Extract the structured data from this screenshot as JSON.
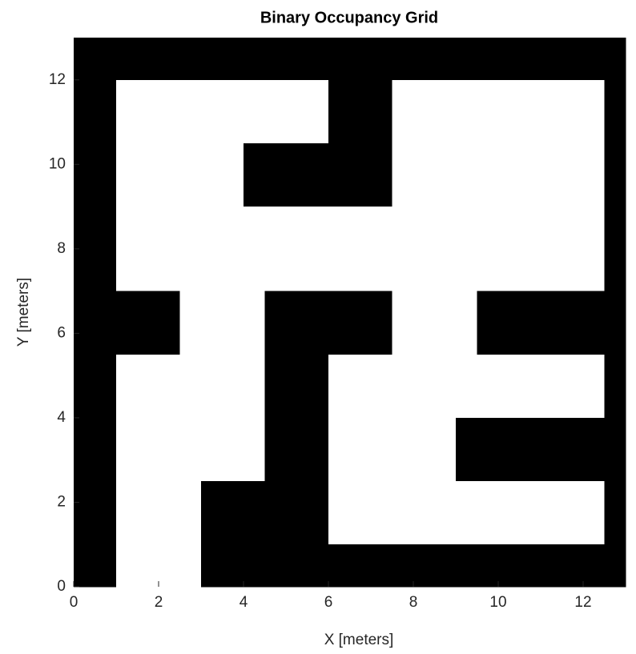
{
  "chart_data": {
    "type": "occupancy_grid",
    "title": "Binary Occupancy Grid",
    "x_label": "X [meters]",
    "y_label": "Y [meters]",
    "xlim": [
      0,
      13
    ],
    "ylim": [
      0,
      13
    ],
    "xticks": [
      0,
      2,
      4,
      6,
      8,
      10,
      12
    ],
    "yticks": [
      0,
      2,
      4,
      6,
      8,
      10,
      12
    ],
    "occupied_color": "#000000",
    "free_color": "#ffffff",
    "grid": [
      [
        1,
        1,
        1,
        1,
        1,
        1,
        1,
        1,
        1,
        1,
        1,
        1,
        1,
        1,
        1,
        1,
        1,
        1,
        1,
        1,
        1,
        1,
        1,
        1,
        1,
        1
      ],
      [
        1,
        1,
        1,
        1,
        1,
        1,
        1,
        1,
        1,
        1,
        1,
        1,
        1,
        1,
        1,
        1,
        1,
        1,
        1,
        1,
        1,
        1,
        1,
        1,
        1,
        1
      ],
      [
        1,
        1,
        0,
        0,
        0,
        0,
        0,
        0,
        0,
        0,
        0,
        0,
        1,
        1,
        1,
        0,
        0,
        0,
        0,
        0,
        0,
        0,
        0,
        0,
        0,
        1
      ],
      [
        1,
        1,
        0,
        0,
        0,
        0,
        0,
        0,
        0,
        0,
        0,
        0,
        1,
        1,
        1,
        0,
        0,
        0,
        0,
        0,
        0,
        0,
        0,
        0,
        0,
        1
      ],
      [
        1,
        1,
        0,
        0,
        0,
        0,
        0,
        0,
        0,
        0,
        0,
        0,
        1,
        1,
        1,
        0,
        0,
        0,
        0,
        0,
        0,
        0,
        0,
        0,
        0,
        1
      ],
      [
        1,
        1,
        0,
        0,
        0,
        0,
        0,
        0,
        1,
        1,
        1,
        1,
        1,
        1,
        1,
        0,
        0,
        0,
        0,
        0,
        0,
        0,
        0,
        0,
        0,
        1
      ],
      [
        1,
        1,
        0,
        0,
        0,
        0,
        0,
        0,
        1,
        1,
        1,
        1,
        1,
        1,
        1,
        0,
        0,
        0,
        0,
        0,
        0,
        0,
        0,
        0,
        0,
        1
      ],
      [
        1,
        1,
        0,
        0,
        0,
        0,
        0,
        0,
        1,
        1,
        1,
        1,
        1,
        1,
        1,
        0,
        0,
        0,
        0,
        0,
        0,
        0,
        0,
        0,
        0,
        1
      ],
      [
        1,
        1,
        0,
        0,
        0,
        0,
        0,
        0,
        0,
        0,
        0,
        0,
        0,
        0,
        0,
        0,
        0,
        0,
        0,
        0,
        0,
        0,
        0,
        0,
        0,
        1
      ],
      [
        1,
        1,
        0,
        0,
        0,
        0,
        0,
        0,
        0,
        0,
        0,
        0,
        0,
        0,
        0,
        0,
        0,
        0,
        0,
        0,
        0,
        0,
        0,
        0,
        0,
        1
      ],
      [
        1,
        1,
        0,
        0,
        0,
        0,
        0,
        0,
        0,
        0,
        0,
        0,
        0,
        0,
        0,
        0,
        0,
        0,
        0,
        0,
        0,
        0,
        0,
        0,
        0,
        1
      ],
      [
        1,
        1,
        0,
        0,
        0,
        0,
        0,
        0,
        0,
        0,
        0,
        0,
        0,
        0,
        0,
        0,
        0,
        0,
        0,
        0,
        0,
        0,
        0,
        0,
        0,
        1
      ],
      [
        1,
        1,
        1,
        1,
        1,
        0,
        0,
        0,
        0,
        1,
        1,
        1,
        1,
        1,
        1,
        0,
        0,
        0,
        0,
        1,
        1,
        1,
        1,
        1,
        1,
        1
      ],
      [
        1,
        1,
        1,
        1,
        1,
        0,
        0,
        0,
        0,
        1,
        1,
        1,
        1,
        1,
        1,
        0,
        0,
        0,
        0,
        1,
        1,
        1,
        1,
        1,
        1,
        1
      ],
      [
        1,
        1,
        1,
        1,
        1,
        0,
        0,
        0,
        0,
        1,
        1,
        1,
        1,
        1,
        1,
        0,
        0,
        0,
        0,
        1,
        1,
        1,
        1,
        1,
        1,
        1
      ],
      [
        1,
        1,
        0,
        0,
        0,
        0,
        0,
        0,
        0,
        1,
        1,
        1,
        0,
        0,
        0,
        0,
        0,
        0,
        0,
        0,
        0,
        0,
        0,
        0,
        0,
        1
      ],
      [
        1,
        1,
        0,
        0,
        0,
        0,
        0,
        0,
        0,
        1,
        1,
        1,
        0,
        0,
        0,
        0,
        0,
        0,
        0,
        0,
        0,
        0,
        0,
        0,
        0,
        1
      ],
      [
        1,
        1,
        0,
        0,
        0,
        0,
        0,
        0,
        0,
        1,
        1,
        1,
        0,
        0,
        0,
        0,
        0,
        0,
        0,
        0,
        0,
        0,
        0,
        0,
        0,
        1
      ],
      [
        1,
        1,
        0,
        0,
        0,
        0,
        0,
        0,
        0,
        1,
        1,
        1,
        0,
        0,
        0,
        0,
        0,
        0,
        1,
        1,
        1,
        1,
        1,
        1,
        1,
        1
      ],
      [
        1,
        1,
        0,
        0,
        0,
        0,
        0,
        0,
        0,
        1,
        1,
        1,
        0,
        0,
        0,
        0,
        0,
        0,
        1,
        1,
        1,
        1,
        1,
        1,
        1,
        1
      ],
      [
        1,
        1,
        0,
        0,
        0,
        0,
        0,
        0,
        0,
        1,
        1,
        1,
        0,
        0,
        0,
        0,
        0,
        0,
        1,
        1,
        1,
        1,
        1,
        1,
        1,
        1
      ],
      [
        1,
        1,
        0,
        0,
        0,
        0,
        1,
        1,
        1,
        1,
        1,
        1,
        0,
        0,
        0,
        0,
        0,
        0,
        0,
        0,
        0,
        0,
        0,
        0,
        0,
        1
      ],
      [
        1,
        1,
        0,
        0,
        0,
        0,
        1,
        1,
        1,
        1,
        1,
        1,
        0,
        0,
        0,
        0,
        0,
        0,
        0,
        0,
        0,
        0,
        0,
        0,
        0,
        1
      ],
      [
        1,
        1,
        0,
        0,
        0,
        0,
        1,
        1,
        1,
        1,
        1,
        1,
        0,
        0,
        0,
        0,
        0,
        0,
        0,
        0,
        0,
        0,
        0,
        0,
        0,
        1
      ],
      [
        1,
        1,
        0,
        0,
        0,
        0,
        1,
        1,
        1,
        1,
        1,
        1,
        1,
        1,
        1,
        1,
        1,
        1,
        1,
        1,
        1,
        1,
        1,
        1,
        1,
        1
      ],
      [
        1,
        1,
        0,
        0,
        0,
        0,
        1,
        1,
        1,
        1,
        1,
        1,
        1,
        1,
        1,
        1,
        1,
        1,
        1,
        1,
        1,
        1,
        1,
        1,
        1,
        1
      ]
    ]
  }
}
